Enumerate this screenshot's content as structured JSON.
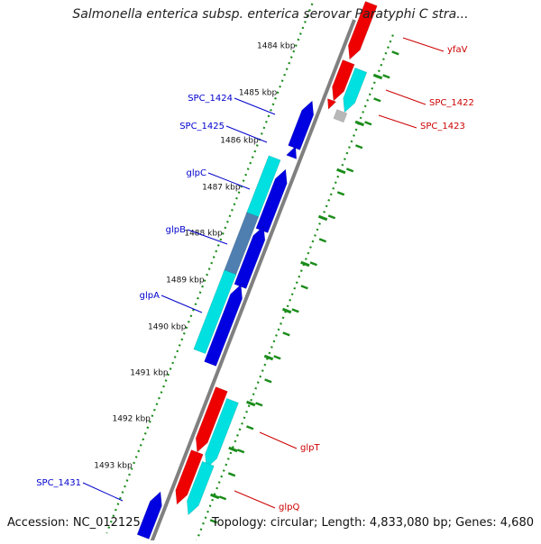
{
  "title": "Salmonella enterica subsp. enterica serovar Paratyphi C stra...",
  "footer": {
    "accession": "Accession: NC_012125",
    "summary": "Topology: circular; Length: 4,833,080 bp; Genes: 4,680"
  },
  "colors": {
    "backbone": "#808080",
    "scale_dots": "#1a8c1a",
    "gene_blue": "#0000e0",
    "gene_cyan": "#00e0e0",
    "gene_red": "#ee0000",
    "gene_steel": "#4f7fb0",
    "gene_gray": "#b8b8b8",
    "label_blue": "#0000cc",
    "label_red": "#cc0000"
  },
  "scale_labels": [
    "1484 kbp",
    "1485 kbp",
    "1486 kbp",
    "1487 kbp",
    "1488 kbp",
    "1489 kbp",
    "1490 kbp",
    "1491 kbp",
    "1492 kbp",
    "1493 kbp"
  ],
  "gene_labels": {
    "forward": [
      "yfaV",
      "SPC_1422",
      "SPC_1423",
      "glpT",
      "glpQ"
    ],
    "reverse": [
      "SPC_1424",
      "SPC_1425",
      "glpC",
      "glpB",
      "glpA",
      "SPC_1431"
    ]
  }
}
